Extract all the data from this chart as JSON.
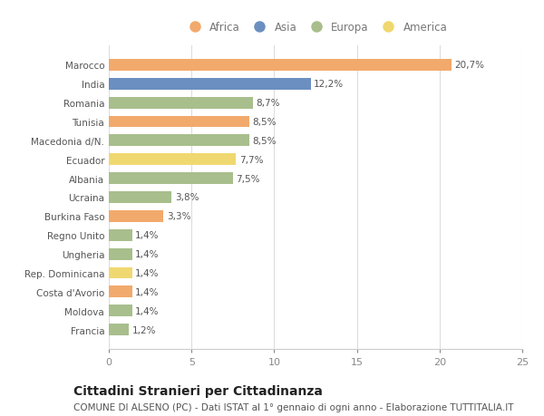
{
  "countries": [
    "Marocco",
    "India",
    "Romania",
    "Tunisia",
    "Macedonia d/N.",
    "Ecuador",
    "Albania",
    "Ucraina",
    "Burkina Faso",
    "Regno Unito",
    "Ungheria",
    "Rep. Dominicana",
    "Costa d'Avorio",
    "Moldova",
    "Francia"
  ],
  "values": [
    20.7,
    12.2,
    8.7,
    8.5,
    8.5,
    7.7,
    7.5,
    3.8,
    3.3,
    1.4,
    1.4,
    1.4,
    1.4,
    1.4,
    1.2
  ],
  "labels": [
    "20,7%",
    "12,2%",
    "8,7%",
    "8,5%",
    "8,5%",
    "7,7%",
    "7,5%",
    "3,8%",
    "3,3%",
    "1,4%",
    "1,4%",
    "1,4%",
    "1,4%",
    "1,4%",
    "1,2%"
  ],
  "continents": [
    "Africa",
    "Asia",
    "Europa",
    "Africa",
    "Europa",
    "America",
    "Europa",
    "Europa",
    "Africa",
    "Europa",
    "Europa",
    "America",
    "Africa",
    "Europa",
    "Europa"
  ],
  "continent_colors": {
    "Africa": "#F2A96C",
    "Asia": "#6B8FC0",
    "Europa": "#A8BE8C",
    "America": "#F0D870"
  },
  "legend_order": [
    "Africa",
    "Asia",
    "Europa",
    "America"
  ],
  "xlim": [
    0,
    25
  ],
  "xticks": [
    0,
    5,
    10,
    15,
    20,
    25
  ],
  "title": "Cittadini Stranieri per Cittadinanza",
  "subtitle": "COMUNE DI ALSENO (PC) - Dati ISTAT al 1° gennaio di ogni anno - Elaborazione TUTTITALIA.IT",
  "background_color": "#ffffff",
  "bar_height": 0.62,
  "title_fontsize": 10,
  "subtitle_fontsize": 7.5,
  "label_fontsize": 7.5,
  "ytick_fontsize": 7.5,
  "xtick_fontsize": 8,
  "legend_fontsize": 8.5
}
